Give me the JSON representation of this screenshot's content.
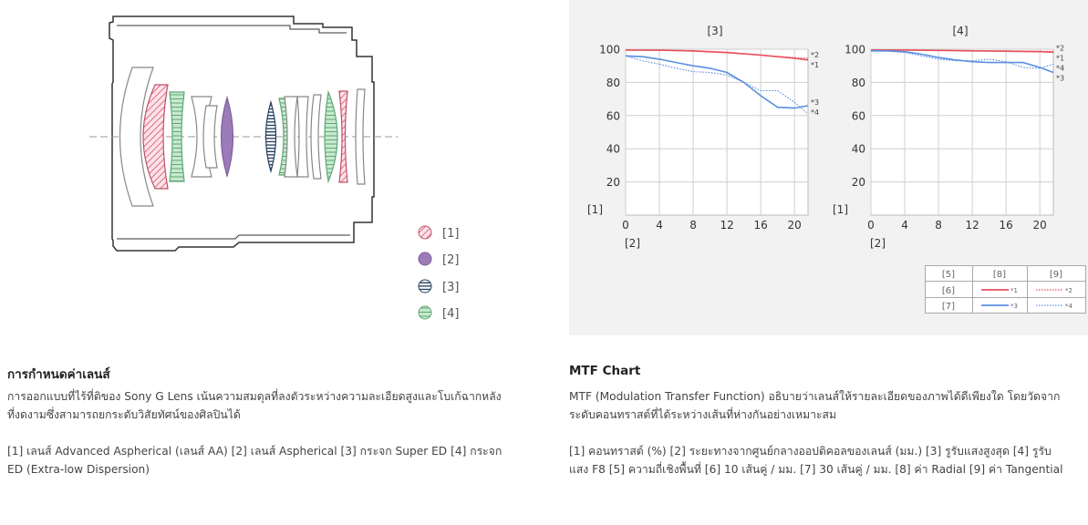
{
  "lens_section": {
    "title": "การกำหนดค่าเลนส์",
    "description": "การออกแบบที่ไร้ที่ติของ Sony G Lens เน้นความสมดุลที่ลงตัวระหว่างความละเอียดสูงและโบเก้ฉากหลังที่งดงามซึ่งสามารถยกระดับวิสัยทัศน์ของศิลปินได้",
    "legend_note": "[1] เลนส์ Advanced Aspherical (เลนส์ AA)  [2] เลนส์ Aspherical  [3] กระจก Super ED  [4] กระจก ED (Extra-low Dispersion)",
    "legend": [
      {
        "label": "[1]",
        "pattern": "red-hatch",
        "color": "#e0607a"
      },
      {
        "label": "[2]",
        "pattern": "solid",
        "color": "#9b7bb8"
      },
      {
        "label": "[3]",
        "pattern": "horizontal-lines",
        "color": "#2a4a6a"
      },
      {
        "label": "[4]",
        "pattern": "green-lines",
        "color": "#7fbf8f"
      }
    ]
  },
  "mtf_section": {
    "title": "MTF Chart",
    "description": "MTF (Modulation Transfer Function) อธิบายว่าเลนส์ให้รายละเอียดของภาพได้ดีเพียงใด โดยวัดจากระดับคอนทราสต์ที่ได้ระหว่างเส้นที่ห่างกันอย่างเหมาะสม",
    "legend_note": "[1] คอนทราสต์ (%)  [2] ระยะทางจากศูนย์กลางออปติคอลของเลนส์ (มม.)  [3] รูรับแสงสูงสุด  [4] รูรับแสง F8  [5] ความถี่เชิงพื้นที่  [6] 10 เส้นคู่ / มม.  [7] 30 เส้นคู่ / มม.  [8] ค่า Radial  [9] ค่า Tangential"
  },
  "mtf_key": {
    "headers": [
      "[5]",
      "[8]",
      "[9]"
    ],
    "rows": [
      {
        "label": "[6]",
        "radial": "*1",
        "tangential": "*2"
      },
      {
        "label": "[7]",
        "radial": "*3",
        "tangential": "*4"
      }
    ],
    "colors": {
      "ten_lp": "#e8505b",
      "thirty_lp": "#5b8fe0"
    }
  },
  "chart_data": [
    {
      "type": "line",
      "title": "[3]",
      "ylabel": "[1]",
      "xlabel": "[2]",
      "xlim": [
        0,
        21.6
      ],
      "ylim": [
        0,
        100
      ],
      "xticks": [
        0,
        4,
        8,
        12,
        16,
        20
      ],
      "yticks": [
        20,
        40,
        60,
        80,
        100
      ],
      "grid": true,
      "series": [
        {
          "name": "*1",
          "style": "solid",
          "color": "#e8505b",
          "x": [
            0,
            4,
            8,
            12,
            16,
            20,
            21.6
          ],
          "y": [
            99.5,
            99.4,
            99,
            98,
            96.5,
            94.5,
            93.5
          ]
        },
        {
          "name": "*2",
          "style": "dotted",
          "color": "#e8505b",
          "x": [
            0,
            4,
            8,
            12,
            16,
            20,
            21.6
          ],
          "y": [
            99.5,
            99.3,
            98.8,
            97.8,
            96.5,
            95,
            94.5
          ]
        },
        {
          "name": "*3",
          "style": "solid",
          "color": "#5b8fe0",
          "x": [
            0,
            2,
            4,
            6,
            8,
            10,
            12,
            14,
            16,
            18,
            20,
            21.6
          ],
          "y": [
            96,
            95.5,
            94,
            92,
            90,
            88.5,
            86,
            80,
            72,
            65,
            64.5,
            66
          ]
        },
        {
          "name": "*4",
          "style": "dotted",
          "color": "#5b8fe0",
          "x": [
            0,
            2,
            4,
            6,
            8,
            10,
            12,
            14,
            16,
            18,
            20,
            21.6
          ],
          "y": [
            96,
            93,
            91,
            88.5,
            86.5,
            86,
            84.5,
            80,
            75,
            75,
            68,
            61
          ]
        }
      ],
      "annotations": [
        "*1",
        "*2",
        "*3",
        "*4"
      ]
    },
    {
      "type": "line",
      "title": "[4]",
      "ylabel": "[1]",
      "xlabel": "[2]",
      "xlim": [
        0,
        21.6
      ],
      "ylim": [
        0,
        100
      ],
      "xticks": [
        0,
        4,
        8,
        12,
        16,
        20
      ],
      "yticks": [
        20,
        40,
        60,
        80,
        100
      ],
      "grid": true,
      "series": [
        {
          "name": "*1",
          "style": "solid",
          "color": "#e8505b",
          "x": [
            0,
            4,
            8,
            12,
            16,
            20,
            21.6
          ],
          "y": [
            99.5,
            99.5,
            99.3,
            99,
            98.8,
            98.5,
            98.2
          ]
        },
        {
          "name": "*2",
          "style": "dotted",
          "color": "#e8505b",
          "x": [
            0,
            4,
            8,
            12,
            16,
            20,
            21.6
          ],
          "y": [
            99.6,
            99.6,
            99.4,
            99.2,
            99,
            98.8,
            98.7
          ]
        },
        {
          "name": "*3",
          "style": "solid",
          "color": "#5b8fe0",
          "x": [
            0,
            2,
            4,
            6,
            8,
            10,
            12,
            14,
            16,
            18,
            20,
            21.6
          ],
          "y": [
            99,
            99,
            98.5,
            97,
            95,
            93.5,
            92.5,
            92,
            92,
            92,
            89,
            86
          ]
        },
        {
          "name": "*4",
          "style": "dotted",
          "color": "#5b8fe0",
          "x": [
            0,
            2,
            4,
            6,
            8,
            10,
            12,
            14,
            16,
            18,
            20,
            21.6
          ],
          "y": [
            99,
            98.8,
            98,
            96,
            94,
            93,
            93,
            94,
            92.5,
            89,
            88.5,
            91
          ]
        }
      ],
      "annotations": [
        "*2",
        "*1",
        "*4",
        "*3"
      ]
    }
  ]
}
